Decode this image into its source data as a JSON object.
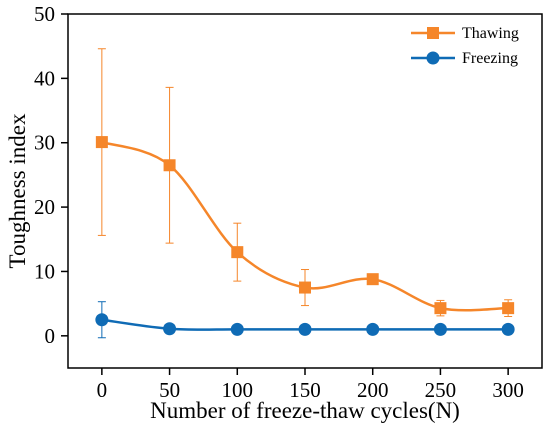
{
  "chart_data": {
    "type": "line",
    "x": [
      0,
      50,
      100,
      150,
      200,
      250,
      300
    ],
    "series": [
      {
        "name": "Thawing",
        "values": [
          30.1,
          26.5,
          13.0,
          7.5,
          8.8,
          4.3,
          4.3
        ],
        "error": [
          14.5,
          12.1,
          4.5,
          2.8,
          0.5,
          1.2,
          1.3
        ],
        "color": "#f5862a",
        "marker": "square"
      },
      {
        "name": "Freezing",
        "values": [
          2.5,
          1.1,
          1.0,
          1.0,
          1.0,
          1.0,
          1.0
        ],
        "error": [
          2.8,
          0.2,
          0.1,
          0.1,
          0.1,
          0.1,
          0.1
        ],
        "color": "#0f6bb5",
        "marker": "circle"
      }
    ],
    "xlabel": "Number of freeze-thaw cycles(N)",
    "ylabel": "Toughness index",
    "xlim": [
      -25,
      325
    ],
    "ylim": [
      -5,
      50
    ],
    "xticks": [
      0,
      50,
      100,
      150,
      200,
      250,
      300
    ],
    "yticks": [
      0,
      10,
      20,
      30,
      40,
      50
    ],
    "grid": false,
    "legend_position": "top-right"
  }
}
